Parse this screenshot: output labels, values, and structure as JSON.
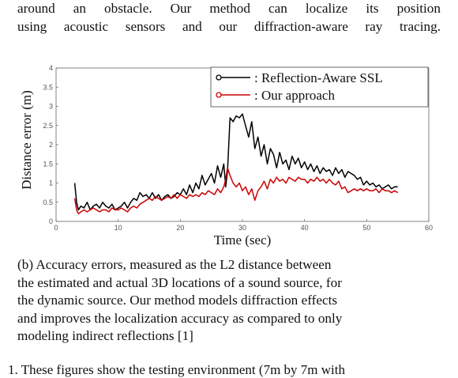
{
  "top_text": {
    "line1": "around an obstacle. Our method can localize its position",
    "line2": "using acoustic sensors and our diffraction-aware ray tracing."
  },
  "caption": {
    "line1": "(b) Accuracy errors, measured as the L2 distance between",
    "line2": "the estimated and actual 3D locations of a sound source, for",
    "line3": "the dynamic source. Our method models diffraction effects",
    "line4": "and improves the localization accuracy as compared to only",
    "line5": "modeling indirect reflections [1]"
  },
  "bottom_cut": "1.   These figures show the testing environment (7m by 7m with",
  "chart_data": {
    "type": "line",
    "xlabel": "Time (sec)",
    "ylabel": "Distance error (m)",
    "xlim": [
      0,
      60
    ],
    "ylim": [
      0,
      4
    ],
    "xticks": [
      0,
      10,
      20,
      30,
      40,
      50,
      60
    ],
    "yticks": [
      0,
      0.5,
      1,
      1.5,
      2,
      2.5,
      3,
      3.5,
      4
    ],
    "ytick_labels": [
      "0",
      "0.5",
      "1",
      "1.5",
      "2",
      "2.5",
      "3",
      "3.5",
      "4"
    ],
    "legend_position": "top-right",
    "grid": false,
    "series": [
      {
        "name": ": Reflection-Aware SSL",
        "color": "#000000",
        "marker": "circle",
        "x": [
          3,
          3.3,
          3.6,
          4,
          4.5,
          5,
          5.5,
          6,
          6.5,
          7,
          7.5,
          8,
          8.5,
          9,
          9.5,
          10,
          10.5,
          11,
          11.5,
          12,
          12.5,
          13,
          13.5,
          14,
          14.5,
          15,
          15.5,
          16,
          16.5,
          17,
          17.5,
          18,
          18.5,
          19,
          19.5,
          20,
          20.5,
          21,
          21.5,
          22,
          22.5,
          23,
          23.5,
          24,
          24.5,
          25,
          25.5,
          26,
          26.5,
          27,
          27.3,
          27.6,
          28,
          28.5,
          29,
          29.5,
          30,
          30.5,
          31,
          31.5,
          32,
          32.5,
          33,
          33.5,
          34,
          34.5,
          35,
          35.5,
          36,
          36.5,
          37,
          37.5,
          38,
          38.5,
          39,
          39.5,
          40,
          40.5,
          41,
          41.5,
          42,
          42.5,
          43,
          43.5,
          44,
          44.5,
          45,
          45.5,
          46,
          46.5,
          47,
          47.5,
          48,
          48.5,
          49,
          49.5,
          50,
          50.5,
          51,
          51.5,
          52,
          52.5,
          53,
          53.5,
          54,
          54.5,
          55
        ],
        "y": [
          1.0,
          0.5,
          0.3,
          0.4,
          0.35,
          0.5,
          0.3,
          0.4,
          0.45,
          0.35,
          0.5,
          0.4,
          0.35,
          0.45,
          0.3,
          0.35,
          0.4,
          0.5,
          0.35,
          0.5,
          0.6,
          0.55,
          0.75,
          0.65,
          0.7,
          0.6,
          0.75,
          0.6,
          0.7,
          0.55,
          0.65,
          0.7,
          0.6,
          0.65,
          0.75,
          0.7,
          0.85,
          0.7,
          0.95,
          0.75,
          1.0,
          0.85,
          1.2,
          0.95,
          1.1,
          1.25,
          1.0,
          1.45,
          1.15,
          1.5,
          0.9,
          1.3,
          2.7,
          2.6,
          2.75,
          2.7,
          2.8,
          2.5,
          2.2,
          2.6,
          1.9,
          2.2,
          1.7,
          2.0,
          1.5,
          1.9,
          1.75,
          1.4,
          1.8,
          1.5,
          1.6,
          1.35,
          1.7,
          1.5,
          1.65,
          1.4,
          1.55,
          1.35,
          1.5,
          1.3,
          1.45,
          1.25,
          1.4,
          1.3,
          1.35,
          1.2,
          1.4,
          1.25,
          1.35,
          1.15,
          1.3,
          1.25,
          1.2,
          1.1,
          1.15,
          0.95,
          1.05,
          0.95,
          1.0,
          0.9,
          0.95,
          0.85,
          0.9,
          0.95,
          0.85,
          0.9,
          0.9
        ]
      },
      {
        "name": ": Our approach",
        "color": "#cc0000",
        "marker": "circle",
        "x": [
          3,
          3.3,
          3.6,
          4,
          4.5,
          5,
          5.5,
          6,
          6.5,
          7,
          7.5,
          8,
          8.5,
          9,
          9.5,
          10,
          10.5,
          11,
          11.5,
          12,
          12.5,
          13,
          13.5,
          14,
          14.5,
          15,
          15.5,
          16,
          16.5,
          17,
          17.5,
          18,
          18.5,
          19,
          19.5,
          20,
          20.5,
          21,
          21.5,
          22,
          22.5,
          23,
          23.5,
          24,
          24.5,
          25,
          25.5,
          26,
          26.5,
          27,
          27.3,
          27.6,
          28,
          28.5,
          29,
          29.5,
          30,
          30.5,
          31,
          31.5,
          32,
          32.5,
          33,
          33.5,
          34,
          34.5,
          35,
          35.5,
          36,
          36.5,
          37,
          37.5,
          38,
          38.5,
          39,
          39.5,
          40,
          40.5,
          41,
          41.5,
          42,
          42.5,
          43,
          43.5,
          44,
          44.5,
          45,
          45.5,
          46,
          46.5,
          47,
          47.5,
          48,
          48.5,
          49,
          49.5,
          50,
          50.5,
          51,
          51.5,
          52,
          52.5,
          53,
          53.5,
          54,
          54.5,
          55
        ],
        "y": [
          0.6,
          0.3,
          0.2,
          0.25,
          0.3,
          0.25,
          0.3,
          0.35,
          0.3,
          0.25,
          0.3,
          0.3,
          0.25,
          0.35,
          0.3,
          0.3,
          0.35,
          0.3,
          0.25,
          0.35,
          0.4,
          0.35,
          0.45,
          0.5,
          0.55,
          0.6,
          0.55,
          0.65,
          0.6,
          0.55,
          0.6,
          0.65,
          0.6,
          0.7,
          0.6,
          0.7,
          0.65,
          0.6,
          0.7,
          0.65,
          0.7,
          0.65,
          0.75,
          0.7,
          0.8,
          0.75,
          0.7,
          0.85,
          0.75,
          0.9,
          1.1,
          1.4,
          1.2,
          1.0,
          0.9,
          1.0,
          0.8,
          0.9,
          0.7,
          0.85,
          0.55,
          0.8,
          0.9,
          1.05,
          0.85,
          1.1,
          1.0,
          1.15,
          1.05,
          1.1,
          1.0,
          1.15,
          1.1,
          1.05,
          1.15,
          1.1,
          1.1,
          1.0,
          1.1,
          1.05,
          1.15,
          1.05,
          1.1,
          1.0,
          1.1,
          1.0,
          0.95,
          1.05,
          0.85,
          0.9,
          0.75,
          0.8,
          0.85,
          0.8,
          0.85,
          0.8,
          0.85,
          0.8,
          0.8,
          0.85,
          0.75,
          0.85,
          0.8,
          0.8,
          0.75,
          0.8,
          0.75
        ]
      }
    ]
  }
}
